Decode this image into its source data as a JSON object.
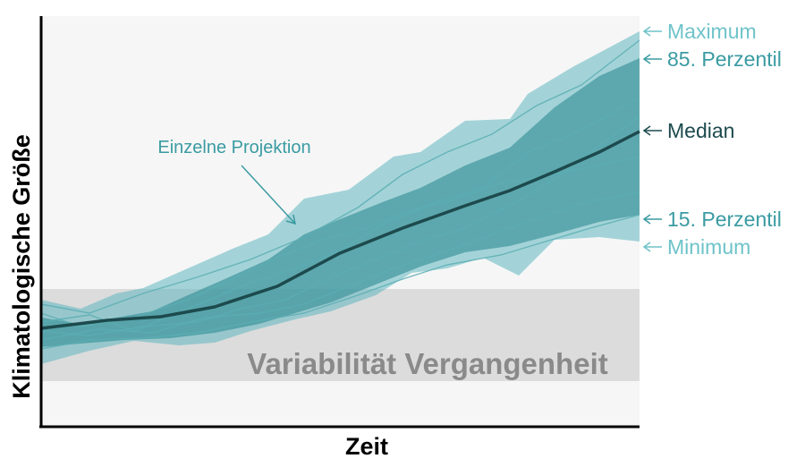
{
  "axes": {
    "xlabel": "Zeit",
    "ylabel": "Klimatologische Größe"
  },
  "past_variability_label": "Variabilität Vergangenheit",
  "annotation": "Einzelne Projektion",
  "legend": {
    "maximum": "Maximum",
    "p85": "85. Perzentil",
    "median": "Median",
    "p15": "15. Perzentil",
    "minimum": "Minimum"
  },
  "colors": {
    "plot_background": "#f6f6f6",
    "past_band": "#dcdcdc",
    "past_text": "#8a8a8a",
    "envelope_outer": "#5fb7bf",
    "envelope_inner": "#2f8c93",
    "median_line": "#1d4a4d",
    "label_light": "#6ec3c9",
    "label_mid": "#3a9ba2",
    "label_dark": "#1d4a4d"
  }
}
